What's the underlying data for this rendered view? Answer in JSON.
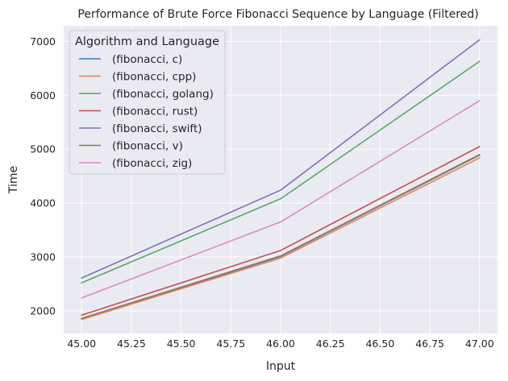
{
  "chart_data": {
    "type": "line",
    "title": "Performance of Brute Force Fibonacci Sequence by Language (Filtered)",
    "xlabel": "Input",
    "ylabel": "Time",
    "x": [
      45,
      46,
      47
    ],
    "xlim": [
      44.91,
      47.09
    ],
    "ylim": [
      1580,
      7290
    ],
    "xticks": [
      45.0,
      45.25,
      45.5,
      45.75,
      46.0,
      46.25,
      46.5,
      46.75,
      47.0
    ],
    "xtick_labels": [
      "45.00",
      "45.25",
      "45.50",
      "45.75",
      "46.00",
      "46.25",
      "46.50",
      "46.75",
      "47.00"
    ],
    "yticks": [
      2000,
      3000,
      4000,
      5000,
      6000,
      7000
    ],
    "ytick_labels": [
      "2000",
      "3000",
      "4000",
      "5000",
      "6000",
      "7000"
    ],
    "grid": true,
    "background": "#eaeaf2",
    "grid_color": "#ffffff",
    "legend": {
      "title": "Algorithm and Language",
      "placement": "top-left"
    },
    "series": [
      {
        "name": "(fibonacci, c)",
        "color": "#4c72b0",
        "values": [
          1850,
          3010,
          4890
        ]
      },
      {
        "name": "(fibonacci, cpp)",
        "color": "#dd8452",
        "values": [
          1840,
          2980,
          4840
        ]
      },
      {
        "name": "(fibonacci, golang)",
        "color": "#55a868",
        "values": [
          2520,
          4080,
          6630
        ]
      },
      {
        "name": "(fibonacci, rust)",
        "color": "#c44e52",
        "values": [
          1920,
          3120,
          5050
        ]
      },
      {
        "name": "(fibonacci, swift)",
        "color": "#8172b3",
        "values": [
          2610,
          4240,
          7030
        ]
      },
      {
        "name": "(fibonacci, v)",
        "color": "#937860",
        "values": [
          1860,
          3020,
          4900
        ]
      },
      {
        "name": "(fibonacci, zig)",
        "color": "#da8bc3",
        "values": [
          2240,
          3650,
          5900
        ]
      }
    ]
  }
}
